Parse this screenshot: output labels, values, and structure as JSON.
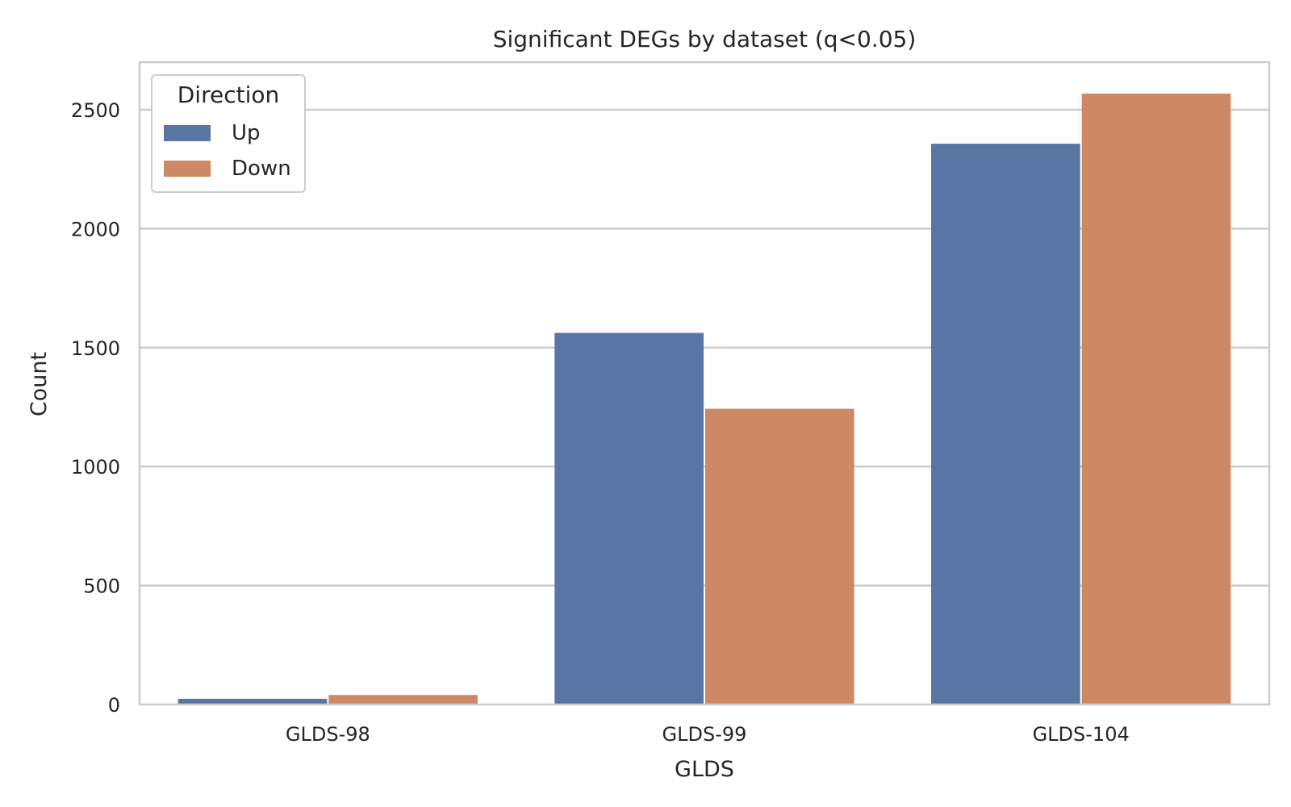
{
  "chart_data": {
    "type": "bar",
    "title": "Significant DEGs by dataset (q<0.05)",
    "xlabel": "GLDS",
    "ylabel": "Count",
    "categories": [
      "GLDS-98",
      "GLDS-99",
      "GLDS-104"
    ],
    "series": [
      {
        "name": "Up",
        "color": "#5875a4",
        "values": [
          24,
          1562,
          2357
        ]
      },
      {
        "name": "Down",
        "color": "#cc8963",
        "values": [
          40,
          1243,
          2568
        ]
      }
    ],
    "ylim": [
      0,
      2700
    ],
    "yticks": [
      0,
      500,
      1000,
      1500,
      2000,
      2500
    ],
    "grid": "horizontal",
    "legend": {
      "title": "Direction",
      "placement": "top-left"
    }
  }
}
